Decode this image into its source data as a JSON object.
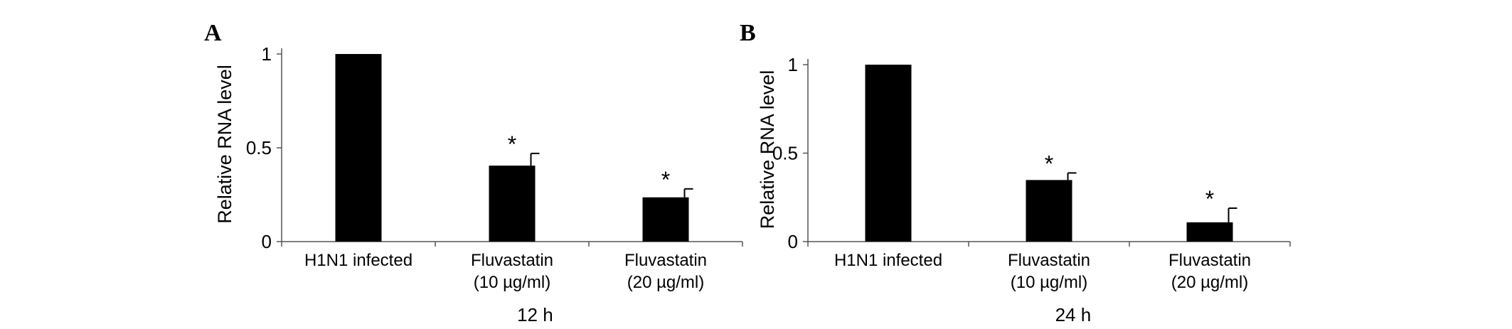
{
  "chart_data": [
    {
      "type": "bar",
      "panel": "A",
      "ylabel": "Relative RNA level",
      "xlabel": "12 h",
      "categories": [
        "H1N1 infected",
        "Fluvastatin\n(10 µg/ml)",
        "Fluvastatin\n(20 µg/ml)"
      ],
      "values": [
        1,
        0.405,
        0.236
      ],
      "errors": [
        null,
        0.065,
        0.045
      ],
      "significance": [
        null,
        "*",
        "*"
      ],
      "color": "#000000",
      "ylim": [
        0,
        1
      ],
      "yticks": [
        0,
        0.5,
        1
      ]
    },
    {
      "type": "bar",
      "panel": "B",
      "ylabel": "Relative RNA level",
      "xlabel": "24 h",
      "categories": [
        "H1N1 infected",
        "Fluvastatin\n(10 µg/ml)",
        "Fluvastatin\n(20 µg/ml)"
      ],
      "values": [
        1,
        0.348,
        0.109
      ],
      "errors": [
        null,
        0.04,
        0.08
      ],
      "significance": [
        null,
        "*",
        "*"
      ],
      "color": "#000000",
      "ylim": [
        0,
        1
      ],
      "yticks": [
        0,
        0.5,
        1
      ]
    }
  ]
}
